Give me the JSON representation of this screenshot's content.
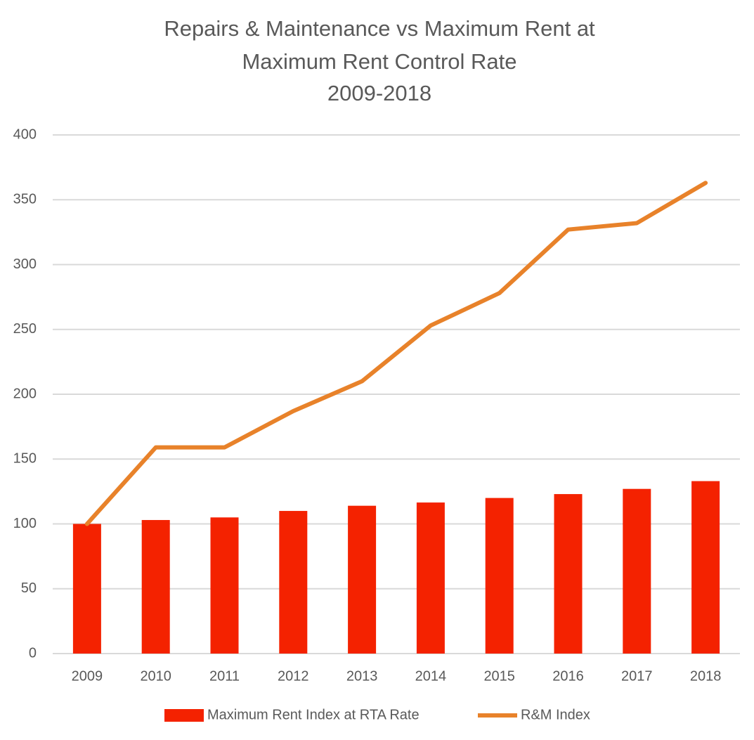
{
  "chart_data": {
    "type": "combo",
    "title": [
      "Repairs & Maintenance vs Maximum Rent at",
      "Maximum Rent Control Rate",
      "2009-2018"
    ],
    "categories": [
      "2009",
      "2010",
      "2011",
      "2012",
      "2013",
      "2014",
      "2015",
      "2016",
      "2017",
      "2018"
    ],
    "series": [
      {
        "name": "Maximum Rent Index at RTA Rate",
        "type": "bar",
        "color": "#f42200",
        "values": [
          100,
          103,
          105,
          110,
          114,
          116.5,
          120,
          123,
          127,
          133
        ]
      },
      {
        "name": "R&M Index",
        "type": "line",
        "color": "#e8822a",
        "values": [
          100,
          159,
          159,
          187,
          210,
          253,
          278,
          327,
          332,
          363
        ]
      }
    ],
    "ylim": [
      0,
      400
    ],
    "yticks": [
      0,
      50,
      100,
      150,
      200,
      250,
      300,
      350,
      400
    ],
    "grid": true,
    "legend": "bottom"
  }
}
